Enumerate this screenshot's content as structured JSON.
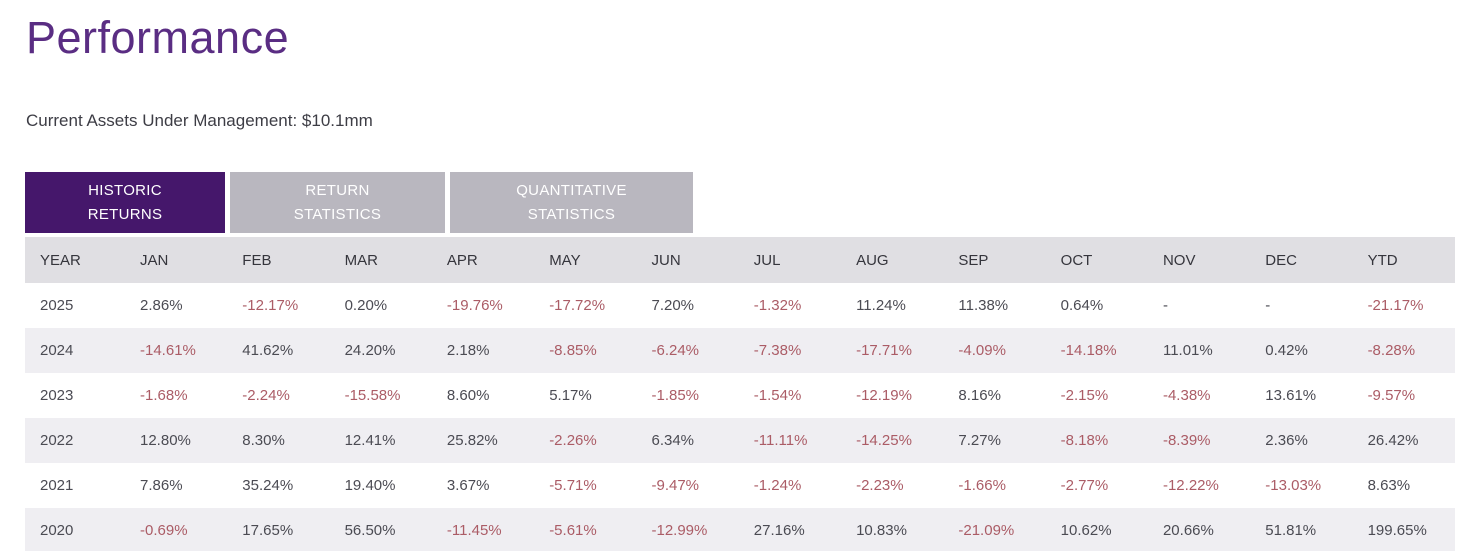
{
  "page": {
    "title": "Performance",
    "subtitle": "Current Assets Under Management: $10.1mm"
  },
  "tabs": [
    {
      "label": "HISTORIC RETURNS",
      "active": true
    },
    {
      "label": "RETURN STATISTICS",
      "active": false
    },
    {
      "label": "QUANTITATIVE STATISTICS",
      "active": false
    }
  ],
  "colors": {
    "title_purple": "#5a2d83",
    "active_tab_purple": "#45176b",
    "inactive_tab_gray": "#b9b7bf",
    "header_row_gray": "#e0dfe3",
    "stripe_row_gray": "#efeef2",
    "positive_text": "#4b4b53",
    "negative_text": "#ab5c66"
  },
  "chart_data": {
    "type": "table",
    "title": "Historic Returns",
    "headers": [
      "YEAR",
      "JAN",
      "FEB",
      "MAR",
      "APR",
      "MAY",
      "JUN",
      "JUL",
      "AUG",
      "SEP",
      "OCT",
      "NOV",
      "DEC",
      "YTD"
    ],
    "rows": [
      {
        "year": "2025",
        "values": [
          "2.86%",
          "-12.17%",
          "0.20%",
          "-19.76%",
          "-17.72%",
          "7.20%",
          "-1.32%",
          "11.24%",
          "11.38%",
          "0.64%",
          "-",
          "-",
          "-21.17%"
        ]
      },
      {
        "year": "2024",
        "values": [
          "-14.61%",
          "41.62%",
          "24.20%",
          "2.18%",
          "-8.85%",
          "-6.24%",
          "-7.38%",
          "-17.71%",
          "-4.09%",
          "-14.18%",
          "11.01%",
          "0.42%",
          "-8.28%"
        ]
      },
      {
        "year": "2023",
        "values": [
          "-1.68%",
          "-2.24%",
          "-15.58%",
          "8.60%",
          "5.17%",
          "-1.85%",
          "-1.54%",
          "-12.19%",
          "8.16%",
          "-2.15%",
          "-4.38%",
          "13.61%",
          "-9.57%"
        ]
      },
      {
        "year": "2022",
        "values": [
          "12.80%",
          "8.30%",
          "12.41%",
          "25.82%",
          "-2.26%",
          "6.34%",
          "-11.11%",
          "-14.25%",
          "7.27%",
          "-8.18%",
          "-8.39%",
          "2.36%",
          "26.42%"
        ]
      },
      {
        "year": "2021",
        "values": [
          "7.86%",
          "35.24%",
          "19.40%",
          "3.67%",
          "-5.71%",
          "-9.47%",
          "-1.24%",
          "-2.23%",
          "-1.66%",
          "-2.77%",
          "-12.22%",
          "-13.03%",
          "8.63%"
        ]
      },
      {
        "year": "2020",
        "values": [
          "-0.69%",
          "17.65%",
          "56.50%",
          "-11.45%",
          "-5.61%",
          "-12.99%",
          "27.16%",
          "10.83%",
          "-21.09%",
          "10.62%",
          "20.66%",
          "51.81%",
          "199.65%"
        ]
      }
    ]
  }
}
